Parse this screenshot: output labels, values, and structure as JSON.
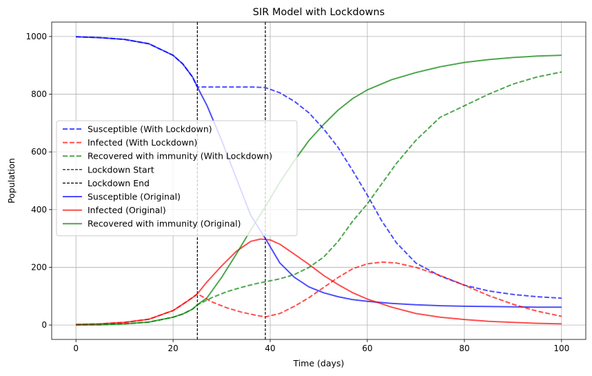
{
  "chart_data": {
    "type": "line",
    "title": "SIR Model with Lockdowns",
    "xlabel": "Time (days)",
    "ylabel": "Population",
    "xlim": [
      -5,
      105
    ],
    "ylim": [
      -50,
      1050
    ],
    "xticks": [
      0,
      20,
      40,
      60,
      80,
      100
    ],
    "yticks": [
      0,
      200,
      400,
      600,
      800,
      1000
    ],
    "grid": true,
    "legend_position": "center-left",
    "vlines": [
      {
        "name": "Lockdown Start",
        "x": 25,
        "color": "#000000",
        "style": "dashed"
      },
      {
        "name": "Lockdown End",
        "x": 39,
        "color": "#000000",
        "style": "dashed"
      }
    ],
    "series": [
      {
        "name": "Susceptible (With Lockdown)",
        "color": "#0000ff",
        "style": "dashed",
        "linewidth": 2,
        "points": [
          [
            0,
            999
          ],
          [
            5,
            996
          ],
          [
            10,
            990
          ],
          [
            15,
            975
          ],
          [
            20,
            935
          ],
          [
            22,
            905
          ],
          [
            24,
            860
          ],
          [
            25,
            825
          ],
          [
            27,
            825
          ],
          [
            30,
            825
          ],
          [
            33,
            825
          ],
          [
            36,
            825
          ],
          [
            39,
            823
          ],
          [
            42,
            805
          ],
          [
            45,
            775
          ],
          [
            48,
            735
          ],
          [
            51,
            680
          ],
          [
            54,
            615
          ],
          [
            57,
            535
          ],
          [
            60,
            450
          ],
          [
            63,
            360
          ],
          [
            66,
            285
          ],
          [
            70,
            215
          ],
          [
            75,
            170
          ],
          [
            80,
            138
          ],
          [
            85,
            118
          ],
          [
            90,
            106
          ],
          [
            95,
            98
          ],
          [
            100,
            93
          ]
        ]
      },
      {
        "name": "Infected (With Lockdown)",
        "color": "#ff0000",
        "style": "dashed",
        "linewidth": 2,
        "points": [
          [
            0,
            2
          ],
          [
            5,
            4
          ],
          [
            10,
            9
          ],
          [
            15,
            20
          ],
          [
            20,
            50
          ],
          [
            22,
            72
          ],
          [
            24,
            95
          ],
          [
            25,
            108
          ],
          [
            28,
            80
          ],
          [
            31,
            60
          ],
          [
            34,
            45
          ],
          [
            37,
            34
          ],
          [
            39,
            28
          ],
          [
            42,
            40
          ],
          [
            45,
            65
          ],
          [
            48,
            95
          ],
          [
            51,
            130
          ],
          [
            54,
            165
          ],
          [
            57,
            195
          ],
          [
            60,
            212
          ],
          [
            63,
            218
          ],
          [
            66,
            215
          ],
          [
            70,
            200
          ],
          [
            75,
            172
          ],
          [
            80,
            138
          ],
          [
            85,
            102
          ],
          [
            90,
            72
          ],
          [
            95,
            48
          ],
          [
            100,
            30
          ]
        ]
      },
      {
        "name": "Recovered with immunity (With Lockdown)",
        "color": "#008000",
        "style": "dashed",
        "linewidth": 2,
        "points": [
          [
            0,
            0
          ],
          [
            5,
            1
          ],
          [
            10,
            4
          ],
          [
            15,
            10
          ],
          [
            20,
            27
          ],
          [
            22,
            38
          ],
          [
            24,
            55
          ],
          [
            25,
            70
          ],
          [
            28,
            95
          ],
          [
            31,
            115
          ],
          [
            34,
            130
          ],
          [
            37,
            143
          ],
          [
            39,
            150
          ],
          [
            42,
            160
          ],
          [
            45,
            175
          ],
          [
            48,
            200
          ],
          [
            51,
            235
          ],
          [
            54,
            290
          ],
          [
            57,
            360
          ],
          [
            60,
            420
          ],
          [
            63,
            490
          ],
          [
            66,
            560
          ],
          [
            70,
            640
          ],
          [
            75,
            720
          ],
          [
            80,
            760
          ],
          [
            85,
            800
          ],
          [
            90,
            835
          ],
          [
            95,
            860
          ],
          [
            100,
            877
          ]
        ]
      },
      {
        "name": "Susceptible (Original)",
        "color": "#0000ff",
        "style": "solid",
        "linewidth": 2,
        "points": [
          [
            0,
            999
          ],
          [
            5,
            996
          ],
          [
            10,
            990
          ],
          [
            15,
            975
          ],
          [
            20,
            935
          ],
          [
            22,
            905
          ],
          [
            24,
            860
          ],
          [
            25,
            825
          ],
          [
            27,
            760
          ],
          [
            30,
            640
          ],
          [
            33,
            510
          ],
          [
            36,
            380
          ],
          [
            39,
            300
          ],
          [
            42,
            215
          ],
          [
            45,
            165
          ],
          [
            48,
            132
          ],
          [
            51,
            112
          ],
          [
            54,
            98
          ],
          [
            57,
            88
          ],
          [
            60,
            82
          ],
          [
            65,
            75
          ],
          [
            70,
            70
          ],
          [
            75,
            67
          ],
          [
            80,
            65
          ],
          [
            85,
            64
          ],
          [
            90,
            63
          ],
          [
            95,
            62
          ],
          [
            100,
            62
          ]
        ]
      },
      {
        "name": "Infected (Original)",
        "color": "#ff0000",
        "style": "solid",
        "linewidth": 2,
        "points": [
          [
            0,
            2
          ],
          [
            5,
            4
          ],
          [
            10,
            9
          ],
          [
            15,
            20
          ],
          [
            20,
            50
          ],
          [
            22,
            72
          ],
          [
            24,
            95
          ],
          [
            25,
            108
          ],
          [
            27,
            150
          ],
          [
            30,
            205
          ],
          [
            33,
            255
          ],
          [
            36,
            290
          ],
          [
            38,
            298
          ],
          [
            40,
            295
          ],
          [
            42,
            280
          ],
          [
            45,
            245
          ],
          [
            48,
            210
          ],
          [
            51,
            172
          ],
          [
            54,
            140
          ],
          [
            57,
            112
          ],
          [
            60,
            90
          ],
          [
            65,
            62
          ],
          [
            70,
            40
          ],
          [
            75,
            27
          ],
          [
            80,
            19
          ],
          [
            85,
            13
          ],
          [
            90,
            9
          ],
          [
            95,
            6
          ],
          [
            100,
            4
          ]
        ]
      },
      {
        "name": "Recovered with immunity (Original)",
        "color": "#008000",
        "style": "solid",
        "linewidth": 2,
        "points": [
          [
            0,
            0
          ],
          [
            5,
            1
          ],
          [
            10,
            4
          ],
          [
            15,
            10
          ],
          [
            20,
            27
          ],
          [
            22,
            38
          ],
          [
            24,
            55
          ],
          [
            25,
            70
          ],
          [
            27,
            95
          ],
          [
            30,
            165
          ],
          [
            33,
            245
          ],
          [
            36,
            330
          ],
          [
            39,
            410
          ],
          [
            42,
            495
          ],
          [
            45,
            570
          ],
          [
            48,
            640
          ],
          [
            51,
            695
          ],
          [
            54,
            745
          ],
          [
            57,
            785
          ],
          [
            60,
            815
          ],
          [
            65,
            850
          ],
          [
            70,
            875
          ],
          [
            75,
            895
          ],
          [
            80,
            910
          ],
          [
            85,
            920
          ],
          [
            90,
            927
          ],
          [
            95,
            932
          ],
          [
            100,
            935
          ]
        ]
      }
    ]
  }
}
